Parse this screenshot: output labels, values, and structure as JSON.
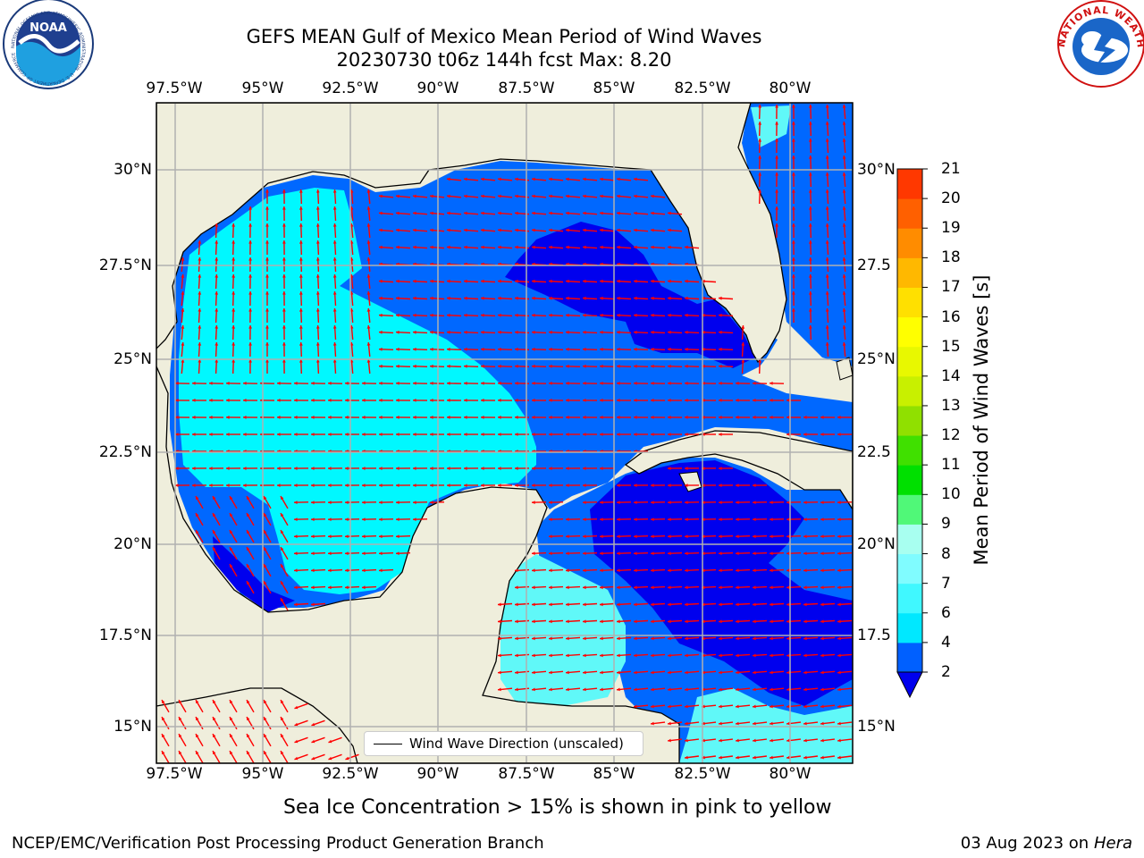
{
  "title_line1": "GEFS MEAN Gulf of Mexico Mean Period of Wind Waves",
  "title_line2": "20230730 t06z 144h fcst   Max: 8.20",
  "lon_ticks": [
    "97.5°W",
    "95°W",
    "92.5°W",
    "90°W",
    "87.5°W",
    "85°W",
    "82.5°W",
    "80°W"
  ],
  "lat_ticks_left": [
    "30°N",
    "27.5°N",
    "25°N",
    "22.5°N",
    "20°N",
    "17.5°N",
    "15°N"
  ],
  "lat_ticks_right": [
    "30°N",
    "27.5",
    "25°N",
    "22.5",
    "20°N",
    "17.5",
    "15°N"
  ],
  "legend_label": "Wind Wave Direction (unscaled)",
  "colorbar": {
    "label": "Mean Period of Wind Waves [s]",
    "ticks": [
      "2",
      "4",
      "6",
      "7",
      "8",
      "9",
      "10",
      "11",
      "12",
      "13",
      "14",
      "15",
      "16",
      "17",
      "18",
      "19",
      "20",
      "21"
    ],
    "colors": [
      "#0060ff",
      "#00e8ff",
      "#40f8ff",
      "#80fcff",
      "#a8fff0",
      "#50f878",
      "#00e000",
      "#40e000",
      "#90e000",
      "#c8f000",
      "#e8f800",
      "#ffff00",
      "#ffe000",
      "#ffb800",
      "#ff8c00",
      "#ff6000",
      "#ff3800",
      "#ff0000"
    ],
    "extend_color": "#0000ee"
  },
  "colors": {
    "land": "#efeedc",
    "band_2_4": "#0068ff",
    "below_2": "#0000ee",
    "band_4_6": "#00f8ff",
    "band_6_8": "#60f8f8",
    "arrow": "#ff0000"
  },
  "ice_note": "Sea Ice Concentration > 15% is shown in pink to yellow",
  "footer_left": "NCEP/EMC/Verification Post Processing Product Generation Branch",
  "footer_date": "03 Aug 2023 on",
  "footer_host": "Hera",
  "logos": {
    "left": {
      "text": "NOAA",
      "ring_text": "NATIONAL OCEANIC AND ATMOSPHERIC ADMINISTRATION · U.S. DEPARTMENT OF COMMERCE"
    },
    "right": {
      "ring_text": "NATIONAL WEATHER SERVICE"
    }
  }
}
